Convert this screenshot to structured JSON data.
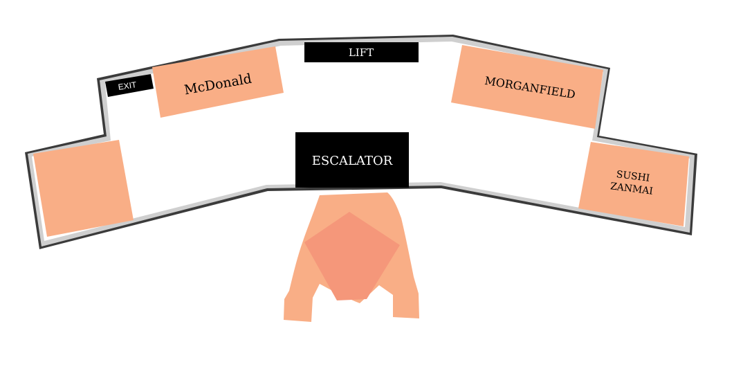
{
  "map": {
    "labels": {
      "exit": "EXIT",
      "lift": "LIFT",
      "escalator": "ESCALATOR",
      "mcdonald": "McDonald",
      "morganfield": "MORGANFIELD",
      "sushi_line1": "SUSHI",
      "sushi_line2": "ZANMAI"
    },
    "colors": {
      "shop": "#f9ae86",
      "wall_outer": "#3a3a3a",
      "wall_inner": "#c8c8c8",
      "floor": "#ffffff",
      "block": "#000000",
      "block_text": "#ffffff",
      "person_body": "#f9ae86",
      "person_head": "#f5977a"
    }
  }
}
